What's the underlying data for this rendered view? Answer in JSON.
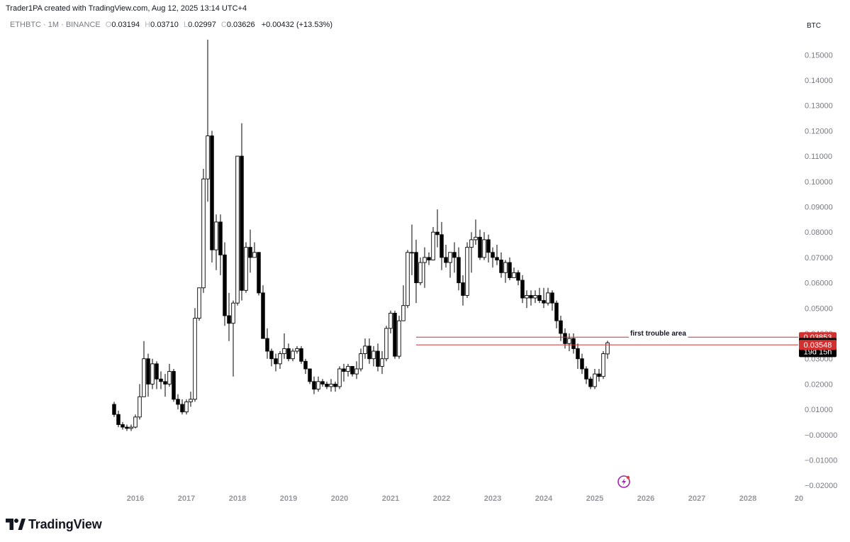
{
  "header": {
    "creator": "Trader1PA created with TradingView.com, Aug 12, 2025 13:14 UTC+4",
    "symbol": "ETHBTC · 1M · BINANCE",
    "open_label": "O",
    "open": "0.03194",
    "high_label": "H",
    "high": "0.03710",
    "low_label": "L",
    "low": "0.02997",
    "close_label": "C",
    "close": "0.03626",
    "change": "+0.00432 (+13.53%)",
    "unit": "BTC"
  },
  "brand": {
    "name": "TradingView"
  },
  "colors": {
    "accent_red": "#d32f2f",
    "candle_bull": "#ffffff",
    "candle_bear": "#000000",
    "grid_text": "#787b86"
  },
  "chart_data": {
    "type": "candlestick",
    "y_ticks": [
      "0.15000",
      "0.14000",
      "0.13000",
      "0.12000",
      "0.11000",
      "0.10000",
      "0.09000",
      "0.08000",
      "0.07000",
      "0.06000",
      "0.05000",
      "0.04000",
      "0.03000",
      "0.02000",
      "0.01000",
      "−0.00000",
      "−0.01000",
      "−0.02000"
    ],
    "y_tick_values": [
      0.15,
      0.14,
      0.13,
      0.12,
      0.11,
      0.1,
      0.09,
      0.08,
      0.07,
      0.06,
      0.05,
      0.04,
      0.03,
      0.02,
      0.01,
      0,
      -0.01,
      -0.02
    ],
    "x_ticks": [
      "2016",
      "2017",
      "2018",
      "2019",
      "2020",
      "2021",
      "2022",
      "2023",
      "2024",
      "2025",
      "2026",
      "2027",
      "2028",
      "20"
    ],
    "ylim": [
      -0.023,
      0.158
    ],
    "candles": [
      [
        0.012,
        0.013,
        0.007,
        0.008
      ],
      [
        0.008,
        0.0095,
        0.003,
        0.004
      ],
      [
        0.004,
        0.005,
        0.002,
        0.003
      ],
      [
        0.003,
        0.004,
        0.0015,
        0.0025
      ],
      [
        0.0025,
        0.004,
        0.0015,
        0.003
      ],
      [
        0.003,
        0.008,
        0.0025,
        0.007
      ],
      [
        0.007,
        0.02,
        0.006,
        0.015
      ],
      [
        0.015,
        0.037,
        0.015,
        0.03
      ],
      [
        0.03,
        0.032,
        0.015,
        0.02
      ],
      [
        0.02,
        0.03,
        0.018,
        0.028
      ],
      [
        0.028,
        0.029,
        0.018,
        0.022
      ],
      [
        0.022,
        0.025,
        0.018,
        0.021
      ],
      [
        0.021,
        0.024,
        0.015,
        0.02
      ],
      [
        0.02,
        0.028,
        0.019,
        0.025
      ],
      [
        0.025,
        0.026,
        0.013,
        0.014
      ],
      [
        0.014,
        0.016,
        0.01,
        0.012
      ],
      [
        0.012,
        0.014,
        0.008,
        0.009
      ],
      [
        0.009,
        0.014,
        0.008,
        0.013
      ],
      [
        0.013,
        0.017,
        0.011,
        0.014
      ],
      [
        0.014,
        0.05,
        0.013,
        0.046
      ],
      [
        0.046,
        0.058,
        0.045,
        0.058
      ],
      [
        0.058,
        0.105,
        0.056,
        0.101
      ],
      [
        0.101,
        0.156,
        0.092,
        0.118
      ],
      [
        0.118,
        0.12,
        0.068,
        0.073
      ],
      [
        0.073,
        0.087,
        0.065,
        0.084
      ],
      [
        0.084,
        0.087,
        0.063,
        0.071
      ],
      [
        0.071,
        0.076,
        0.043,
        0.047
      ],
      [
        0.047,
        0.056,
        0.037,
        0.044
      ],
      [
        0.044,
        0.053,
        0.023,
        0.052
      ],
      [
        0.052,
        0.11,
        0.051,
        0.11
      ],
      [
        0.11,
        0.123,
        0.053,
        0.057
      ],
      [
        0.057,
        0.076,
        0.056,
        0.074
      ],
      [
        0.074,
        0.081,
        0.064,
        0.07
      ],
      [
        0.07,
        0.076,
        0.07,
        0.072
      ],
      [
        0.072,
        0.072,
        0.055,
        0.056
      ],
      [
        0.056,
        0.059,
        0.038,
        0.038
      ],
      [
        0.038,
        0.042,
        0.03,
        0.033
      ],
      [
        0.033,
        0.034,
        0.027,
        0.03
      ],
      [
        0.03,
        0.032,
        0.025,
        0.028
      ],
      [
        0.028,
        0.033,
        0.026,
        0.032
      ],
      [
        0.032,
        0.04,
        0.03,
        0.034
      ],
      [
        0.034,
        0.036,
        0.029,
        0.03
      ],
      [
        0.03,
        0.034,
        0.029,
        0.033
      ],
      [
        0.033,
        0.035,
        0.032,
        0.034
      ],
      [
        0.034,
        0.035,
        0.028,
        0.029
      ],
      [
        0.029,
        0.03,
        0.024,
        0.026
      ],
      [
        0.026,
        0.026,
        0.02,
        0.021
      ],
      [
        0.021,
        0.023,
        0.016,
        0.018
      ],
      [
        0.018,
        0.023,
        0.017,
        0.021
      ],
      [
        0.021,
        0.022,
        0.019,
        0.02
      ],
      [
        0.02,
        0.021,
        0.018,
        0.019
      ],
      [
        0.019,
        0.022,
        0.017,
        0.02
      ],
      [
        0.02,
        0.021,
        0.017,
        0.019
      ],
      [
        0.019,
        0.027,
        0.018,
        0.026
      ],
      [
        0.026,
        0.028,
        0.021,
        0.025
      ],
      [
        0.025,
        0.028,
        0.023,
        0.027
      ],
      [
        0.027,
        0.027,
        0.023,
        0.024
      ],
      [
        0.024,
        0.029,
        0.022,
        0.026
      ],
      [
        0.026,
        0.034,
        0.025,
        0.032
      ],
      [
        0.032,
        0.038,
        0.03,
        0.035
      ],
      [
        0.035,
        0.038,
        0.028,
        0.03
      ],
      [
        0.03,
        0.035,
        0.027,
        0.033
      ],
      [
        0.033,
        0.036,
        0.025,
        0.027
      ],
      [
        0.027,
        0.033,
        0.024,
        0.03
      ],
      [
        0.03,
        0.043,
        0.029,
        0.042
      ],
      [
        0.042,
        0.049,
        0.04,
        0.048
      ],
      [
        0.048,
        0.049,
        0.03,
        0.031
      ],
      [
        0.031,
        0.047,
        0.03,
        0.045
      ],
      [
        0.045,
        0.059,
        0.045,
        0.051
      ],
      [
        0.051,
        0.073,
        0.05,
        0.072
      ],
      [
        0.072,
        0.083,
        0.063,
        0.072
      ],
      [
        0.072,
        0.077,
        0.052,
        0.06
      ],
      [
        0.06,
        0.07,
        0.059,
        0.068
      ],
      [
        0.068,
        0.074,
        0.058,
        0.07
      ],
      [
        0.07,
        0.072,
        0.067,
        0.069
      ],
      [
        0.069,
        0.082,
        0.069,
        0.08
      ],
      [
        0.08,
        0.089,
        0.074,
        0.079
      ],
      [
        0.079,
        0.084,
        0.065,
        0.07
      ],
      [
        0.07,
        0.075,
        0.066,
        0.068
      ],
      [
        0.068,
        0.072,
        0.062,
        0.072
      ],
      [
        0.072,
        0.076,
        0.064,
        0.07
      ],
      [
        0.07,
        0.074,
        0.057,
        0.06
      ],
      [
        0.06,
        0.063,
        0.051,
        0.055
      ],
      [
        0.055,
        0.076,
        0.054,
        0.074
      ],
      [
        0.074,
        0.08,
        0.064,
        0.077
      ],
      [
        0.077,
        0.085,
        0.075,
        0.078
      ],
      [
        0.078,
        0.081,
        0.069,
        0.07
      ],
      [
        0.07,
        0.08,
        0.069,
        0.077
      ],
      [
        0.077,
        0.079,
        0.068,
        0.072
      ],
      [
        0.072,
        0.074,
        0.066,
        0.07
      ],
      [
        0.07,
        0.075,
        0.067,
        0.069
      ],
      [
        0.069,
        0.072,
        0.062,
        0.064
      ],
      [
        0.064,
        0.069,
        0.06,
        0.068
      ],
      [
        0.068,
        0.07,
        0.061,
        0.062
      ],
      [
        0.062,
        0.066,
        0.062,
        0.064
      ],
      [
        0.064,
        0.065,
        0.059,
        0.061
      ],
      [
        0.061,
        0.063,
        0.052,
        0.054
      ],
      [
        0.054,
        0.057,
        0.05,
        0.055
      ],
      [
        0.055,
        0.057,
        0.051,
        0.054
      ],
      [
        0.054,
        0.057,
        0.052,
        0.055
      ],
      [
        0.055,
        0.058,
        0.052,
        0.053
      ],
      [
        0.053,
        0.058,
        0.05,
        0.052
      ],
      [
        0.052,
        0.058,
        0.051,
        0.056
      ],
      [
        0.056,
        0.057,
        0.049,
        0.052
      ],
      [
        0.052,
        0.053,
        0.042,
        0.045
      ],
      [
        0.045,
        0.047,
        0.037,
        0.04
      ],
      [
        0.04,
        0.042,
        0.034,
        0.036
      ],
      [
        0.036,
        0.04,
        0.033,
        0.038
      ],
      [
        0.038,
        0.04,
        0.032,
        0.034
      ],
      [
        0.034,
        0.036,
        0.026,
        0.03
      ],
      [
        0.03,
        0.032,
        0.024,
        0.026
      ],
      [
        0.026,
        0.027,
        0.02,
        0.022
      ],
      [
        0.022,
        0.023,
        0.018,
        0.019
      ],
      [
        0.019,
        0.026,
        0.018,
        0.024
      ],
      [
        0.024,
        0.026,
        0.021,
        0.023
      ],
      [
        0.023,
        0.033,
        0.022,
        0.032
      ],
      [
        0.0319,
        0.0371,
        0.03,
        0.0363
      ]
    ],
    "levels": [
      {
        "value": 0.03853,
        "label": "0.03853"
      },
      {
        "value": 0.03548,
        "label": "0.03548"
      }
    ],
    "annotation": "first trouble area",
    "last_price": {
      "value": 0.03626,
      "label": "0.03626",
      "countdown": "19d 15h"
    }
  }
}
